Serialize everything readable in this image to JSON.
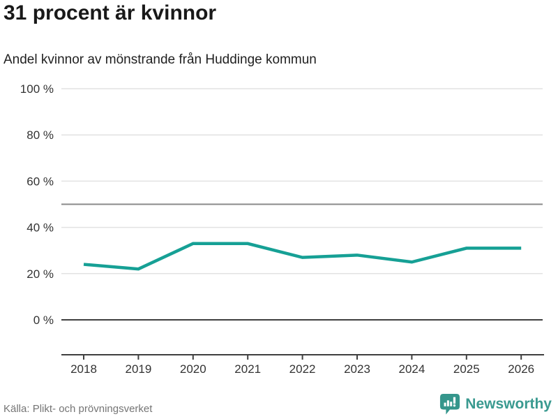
{
  "header": {
    "title": "31 procent är kvinnor",
    "subtitle": "Andel kvinnor av mönstrande från Huddinge kommun"
  },
  "footer": {
    "source": "Källa: Plikt- och prövningsverket",
    "brand": "Newsworthy"
  },
  "colors": {
    "line": "#16a095",
    "brand_teal": "#3a9a90",
    "logo_teal": "#35968c",
    "grid_light": "#e2e2e2",
    "grid_mid": "#8a8a8a",
    "axis_dark": "#3f3f3f",
    "tick_label": "#333333"
  },
  "chart_data": {
    "type": "line",
    "title": "31 procent är kvinnor",
    "subtitle": "Andel kvinnor av mönstrande från Huddinge kommun",
    "x": [
      2018,
      2019,
      2020,
      2021,
      2022,
      2023,
      2024,
      2025,
      2026
    ],
    "series": [
      {
        "name": "Andel kvinnor av mönstrande",
        "values": [
          24,
          22,
          33,
          33,
          27,
          28,
          25,
          31,
          31
        ]
      }
    ],
    "ylim": [
      0,
      100
    ],
    "yticks": [
      0,
      20,
      40,
      60,
      80,
      100
    ],
    "ytick_suffix": " %",
    "reference_lines": [
      50
    ],
    "grid": true,
    "legend": false,
    "xlabel": "",
    "ylabel": ""
  }
}
